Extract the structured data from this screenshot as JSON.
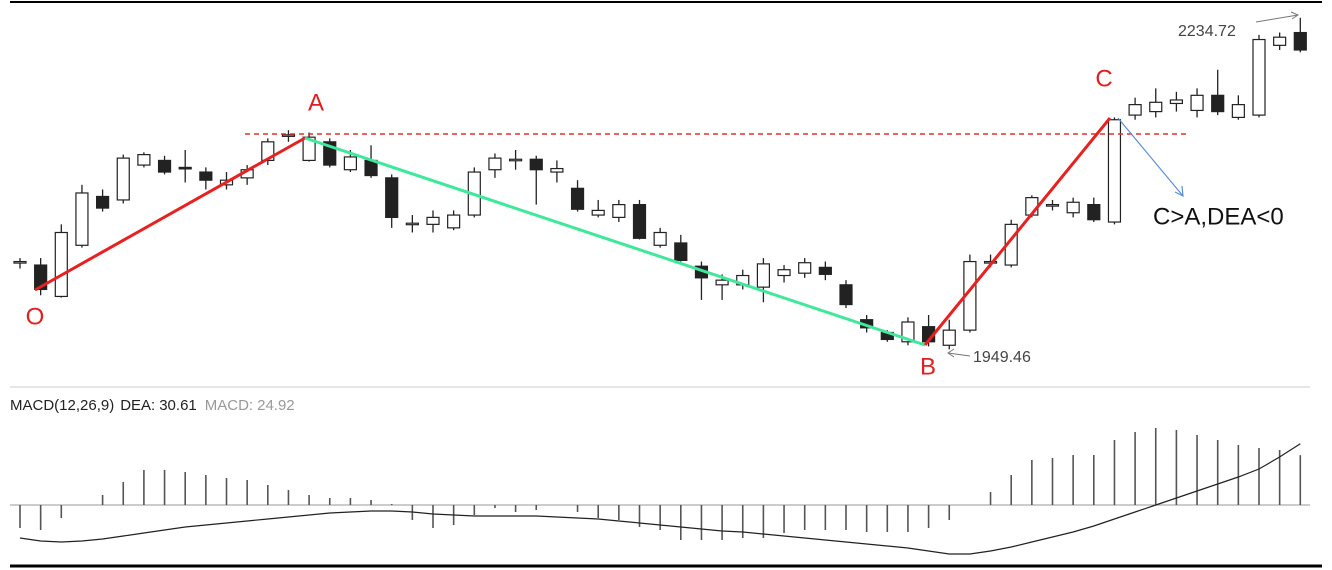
{
  "chart_data": {
    "type": "candlestick",
    "ohlc": [
      [
        2024,
        2028,
        2019,
        2025
      ],
      [
        2022,
        2028,
        1996,
        2001
      ],
      [
        1995,
        2057,
        1994,
        2050
      ],
      [
        2039,
        2091,
        2037,
        2084
      ],
      [
        2081,
        2087,
        2068,
        2071
      ],
      [
        2078,
        2117,
        2075,
        2114
      ],
      [
        2108,
        2119,
        2106,
        2117
      ],
      [
        2112,
        2116,
        2100,
        2102
      ],
      [
        2106,
        2121,
        2093,
        2105
      ],
      [
        2102,
        2106,
        2087,
        2095
      ],
      [
        2091,
        2102,
        2087,
        2095
      ],
      [
        2097,
        2108,
        2091,
        2104
      ],
      [
        2112,
        2131,
        2108,
        2128
      ],
      [
        2133,
        2138,
        2128,
        2134
      ],
      [
        2112,
        2136,
        2111,
        2132
      ],
      [
        2128,
        2131,
        2106,
        2108
      ],
      [
        2104,
        2121,
        2102,
        2115
      ],
      [
        2112,
        2125,
        2097,
        2099
      ],
      [
        2097,
        2100,
        2054,
        2063
      ],
      [
        2057,
        2065,
        2050,
        2058
      ],
      [
        2057,
        2069,
        2050,
        2063
      ],
      [
        2054,
        2069,
        2052,
        2065
      ],
      [
        2065,
        2106,
        2063,
        2102
      ],
      [
        2104,
        2118,
        2097,
        2114
      ],
      [
        2112,
        2121,
        2104,
        2113
      ],
      [
        2113,
        2116,
        2074,
        2104
      ],
      [
        2102,
        2112,
        2093,
        2105
      ],
      [
        2088,
        2095,
        2068,
        2070
      ],
      [
        2065,
        2078,
        2063,
        2069
      ],
      [
        2063,
        2078,
        2059,
        2074
      ],
      [
        2074,
        2078,
        2044,
        2045
      ],
      [
        2039,
        2054,
        2037,
        2050
      ],
      [
        2041,
        2048,
        2025,
        2026
      ],
      [
        2021,
        2025,
        1992,
        2011
      ],
      [
        2005,
        2014,
        1992,
        2009
      ],
      [
        2005,
        2018,
        2001,
        2013
      ],
      [
        2003,
        2028,
        1990,
        2023
      ],
      [
        2013,
        2022,
        2007,
        2018
      ],
      [
        2015,
        2028,
        2011,
        2024
      ],
      [
        2020,
        2025,
        2009,
        2014
      ],
      [
        2005,
        2009,
        1985,
        1988
      ],
      [
        1975,
        1979,
        1964,
        1968
      ],
      [
        1964,
        1966,
        1956,
        1958
      ],
      [
        1956,
        1977,
        1953,
        1973
      ],
      [
        1969,
        1979,
        1952,
        1956
      ],
      [
        1953,
        1975,
        1949.46,
        1966
      ],
      [
        1966,
        2031,
        1964,
        2025
      ],
      [
        2024,
        2031,
        2020,
        2025
      ],
      [
        2022,
        2061,
        2020,
        2057
      ],
      [
        2065,
        2082,
        2063,
        2080
      ],
      [
        2073,
        2078,
        2069,
        2074
      ],
      [
        2067,
        2080,
        2063,
        2076
      ],
      [
        2074,
        2080,
        2059,
        2061
      ],
      [
        2059,
        2149,
        2057,
        2147
      ],
      [
        2151,
        2166,
        2147,
        2160
      ],
      [
        2154,
        2174,
        2149,
        2162
      ],
      [
        2161,
        2171,
        2154,
        2164
      ],
      [
        2155,
        2174,
        2149,
        2168
      ],
      [
        2168,
        2190,
        2151,
        2154
      ],
      [
        2149,
        2168,
        2147,
        2160
      ],
      [
        2151,
        2220,
        2149,
        2216
      ],
      [
        2211,
        2222,
        2207,
        2218
      ],
      [
        2222,
        2234.72,
        2205,
        2207
      ]
    ],
    "ylim": [
      1930,
      2250
    ],
    "up_color": "#ffffff",
    "down_color": "#222222",
    "annotations": {
      "o": "O",
      "a": "A",
      "b": "B",
      "c": "C",
      "note": "C>A,DEA<0"
    },
    "macd_panel": {
      "label": "MACD(12,26,9)",
      "dea_label": "DEA:",
      "macd_label": "MACD:",
      "ylim": [
        -30,
        42.5
      ],
      "histogram": [
        -11.5,
        -12.5,
        -6.5,
        0,
        5,
        11.5,
        17.5,
        17.5,
        16.5,
        15,
        13.5,
        12.5,
        10,
        7.5,
        5,
        3.5,
        3.5,
        2.5,
        0.5,
        -7.5,
        -11.5,
        -10,
        -5,
        -1.5,
        -3.5,
        -2.5,
        0,
        -3.5,
        -6.5,
        -7.5,
        -11,
        -12.5,
        -17.5,
        -17.5,
        -17.5,
        -16.5,
        -16.5,
        -14,
        -12.5,
        -12.5,
        -12.5,
        -13.5,
        -13.5,
        -13.5,
        -11.5,
        -7.5,
        0,
        6.5,
        15,
        22.5,
        23.5,
        25,
        25,
        32.5,
        36.5,
        38.5,
        37.5,
        35,
        32.5,
        30,
        28.5,
        27.5,
        24.92
      ],
      "dea": [
        -16.5,
        -18,
        -18.5,
        -18,
        -17,
        -15.5,
        -14,
        -12.5,
        -11,
        -10,
        -9,
        -8,
        -7,
        -6,
        -5,
        -4,
        -3.5,
        -3,
        -3,
        -3.5,
        -4.5,
        -5,
        -5.5,
        -5.5,
        -5.5,
        -5.5,
        -6,
        -6.5,
        -7,
        -8,
        -9,
        -10,
        -11,
        -12,
        -13,
        -13.5,
        -14.5,
        -15.5,
        -16.5,
        -17.5,
        -18.5,
        -19.5,
        -20.5,
        -21.5,
        -23,
        -24.5,
        -24.5,
        -23,
        -21,
        -18.5,
        -16,
        -13.5,
        -10.5,
        -7,
        -3.5,
        0,
        3.5,
        7,
        10.5,
        14,
        18,
        24,
        30.61
      ]
    }
  }
}
